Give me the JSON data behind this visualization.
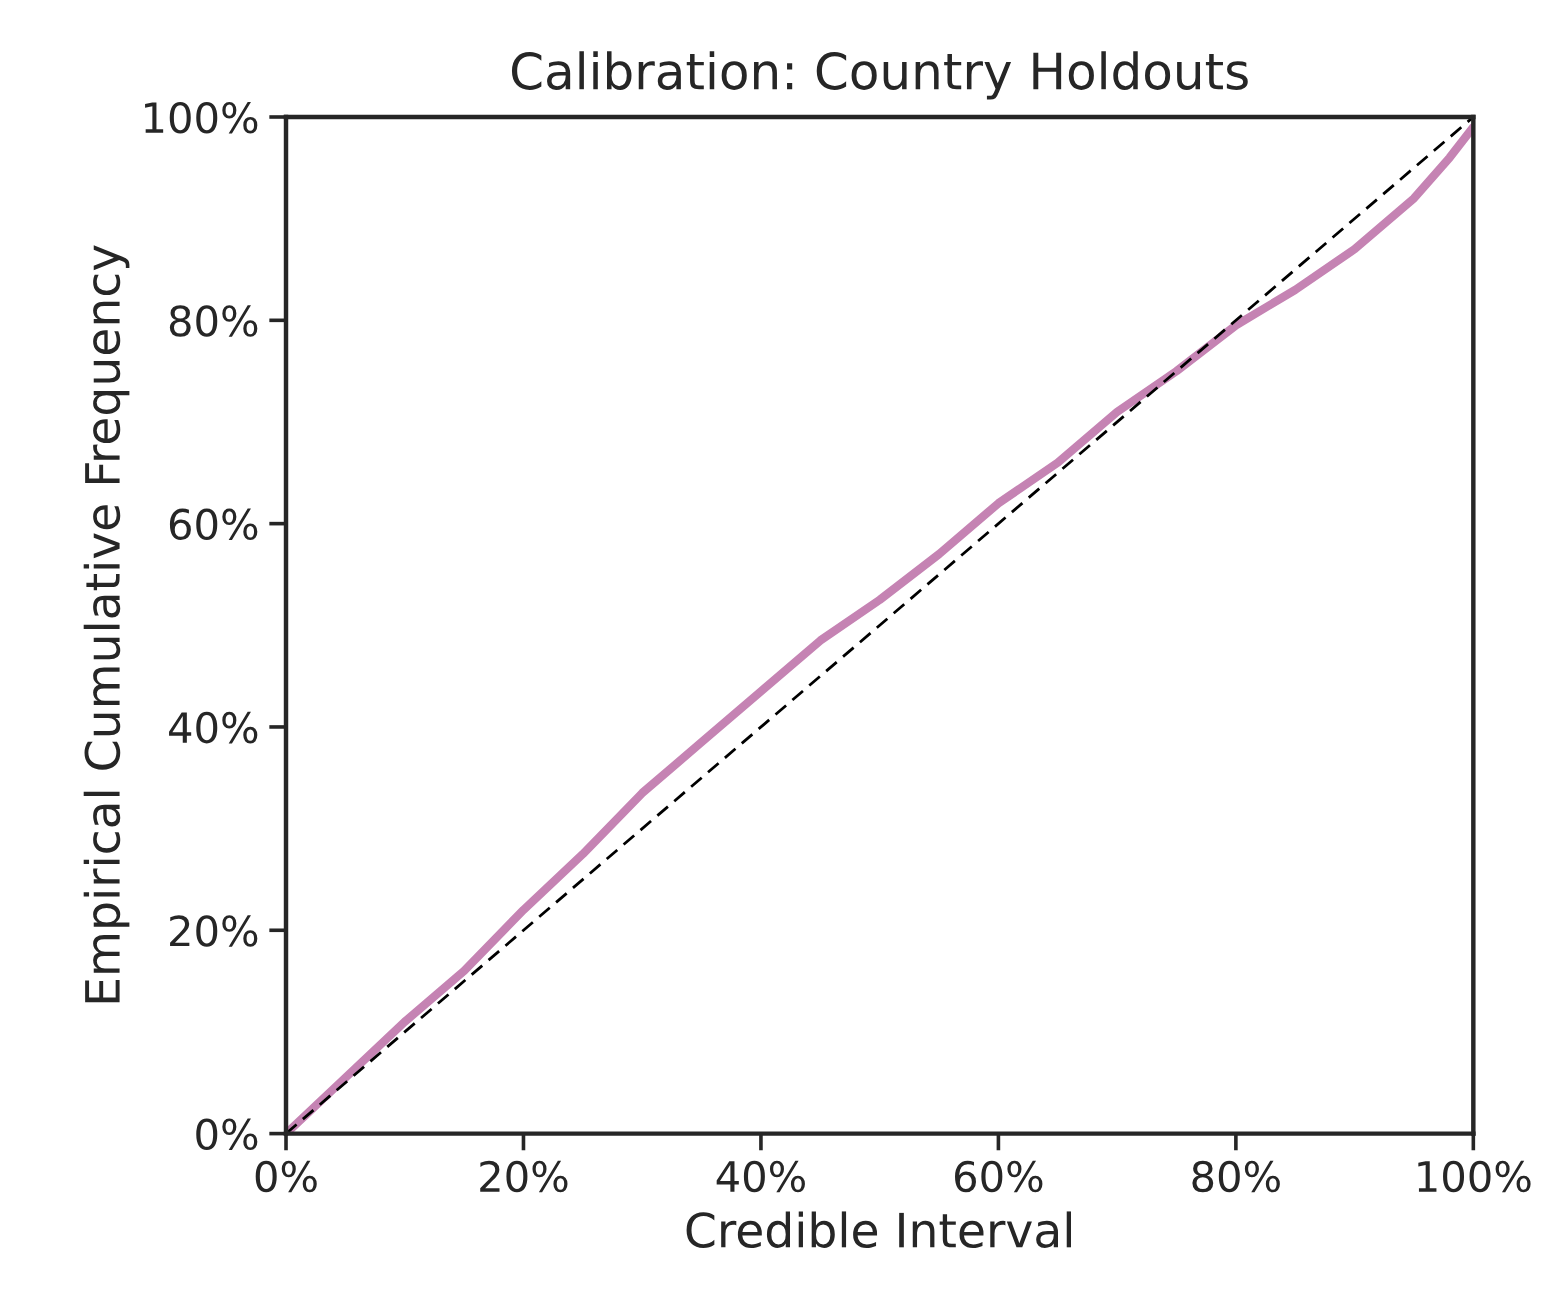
{
  "chart_data": {
    "type": "line",
    "title": "Calibration: Country Holdouts",
    "xlabel": "Credible Interval",
    "ylabel": "Empirical Cumulative Frequency",
    "xlim": [
      0,
      100
    ],
    "ylim": [
      0,
      100
    ],
    "xticks": [
      {
        "value": 0,
        "label": "0%"
      },
      {
        "value": 20,
        "label": "20%"
      },
      {
        "value": 40,
        "label": "40%"
      },
      {
        "value": 60,
        "label": "60%"
      },
      {
        "value": 80,
        "label": "80%"
      },
      {
        "value": 100,
        "label": "100%"
      }
    ],
    "yticks": [
      {
        "value": 0,
        "label": "0%"
      },
      {
        "value": 20,
        "label": "20%"
      },
      {
        "value": 40,
        "label": "40%"
      },
      {
        "value": 60,
        "label": "60%"
      },
      {
        "value": 80,
        "label": "80%"
      },
      {
        "value": 100,
        "label": "100%"
      }
    ],
    "grid": false,
    "series": [
      {
        "color": "#c583b3",
        "line_style": "solid",
        "x": [
          0,
          5,
          10,
          15,
          20,
          25,
          30,
          35,
          40,
          45,
          50,
          55,
          60,
          65,
          70,
          75,
          80,
          85,
          90,
          95,
          98,
          100
        ],
        "values": [
          0,
          5.5,
          11,
          16,
          22,
          27.5,
          33.5,
          38.5,
          43.5,
          48.5,
          52.5,
          57,
          62,
          66,
          71,
          75,
          79.5,
          83,
          87,
          92,
          96,
          99
        ]
      },
      {
        "color": "#000000",
        "line_style": "dashed",
        "x": [
          0,
          100
        ],
        "values": [
          0,
          100
        ]
      }
    ]
  }
}
